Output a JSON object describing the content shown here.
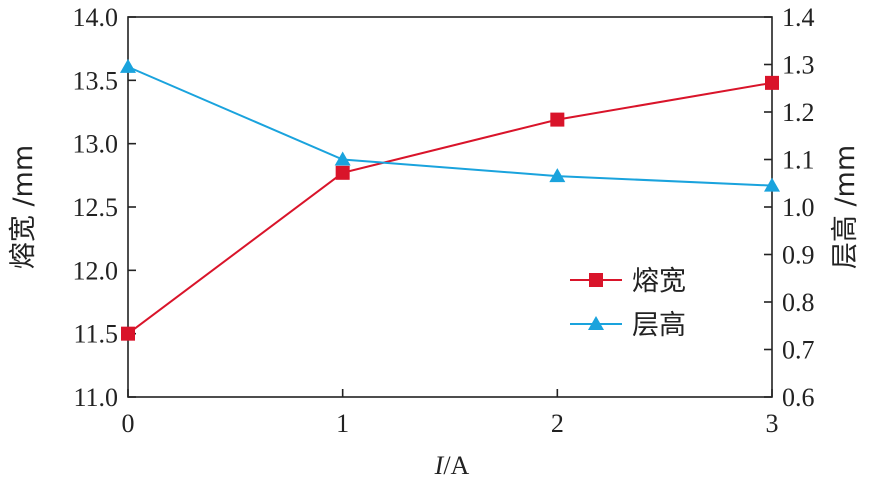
{
  "chart_data": {
    "type": "line",
    "x": [
      0,
      1,
      2,
      3
    ],
    "xlabel_var": "I",
    "xlabel_unit": "/A",
    "xticks": [
      "0",
      "1",
      "2",
      "3"
    ],
    "xlim": [
      0,
      3
    ],
    "ylabel_left": "熔宽 /mm",
    "ylim_left": [
      11.0,
      14.0
    ],
    "yticks_left": [
      "11.0",
      "11.5",
      "12.0",
      "12.5",
      "13.0",
      "13.5",
      "14.0"
    ],
    "ylabel_right": "层高 /mm",
    "ylim_right": [
      0.6,
      1.4
    ],
    "yticks_right": [
      "0.6",
      "0.7",
      "0.8",
      "0.9",
      "1.0",
      "1.1",
      "1.2",
      "1.3",
      "1.4"
    ],
    "series": [
      {
        "name": "熔宽",
        "axis": "left",
        "color": "#d9142a",
        "marker": "square",
        "values": [
          11.5,
          12.77,
          13.19,
          13.48
        ]
      },
      {
        "name": "层高",
        "axis": "right",
        "color": "#1aa3dd",
        "marker": "triangle",
        "values": [
          1.295,
          1.1,
          1.065,
          1.045
        ]
      }
    ],
    "legend": "center-right",
    "grid": false
  }
}
